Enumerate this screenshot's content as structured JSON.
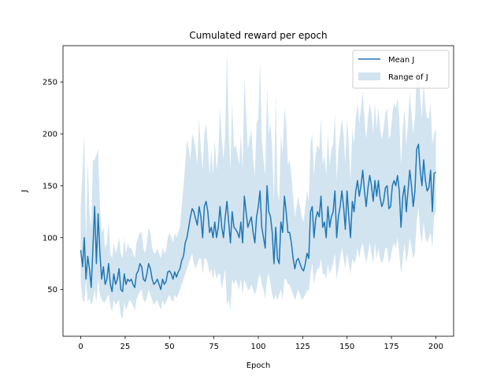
{
  "chart_data": {
    "type": "line",
    "title": "Cumulated reward per epoch",
    "xlabel": "Epoch",
    "ylabel": "J",
    "xlim": [
      -10,
      210
    ],
    "ylim": [
      5,
      285
    ],
    "xticks": [
      0,
      25,
      50,
      75,
      100,
      125,
      150,
      175,
      200
    ],
    "yticks": [
      50,
      100,
      150,
      200,
      250
    ],
    "grid": false,
    "legend_position": "top-right",
    "legend": [
      "Mean J",
      "Range of J"
    ],
    "colors": {
      "line": "#1f77b4",
      "band": "#1f77b4",
      "band_opacity": 0.2
    },
    "x_range": [
      0,
      200
    ],
    "series": [
      {
        "name": "Mean J",
        "kind": "line",
        "values": [
          88,
          72,
          100,
          60,
          82,
          70,
          52,
          90,
          130,
          75,
          123,
          85,
          60,
          72,
          55,
          60,
          75,
          55,
          48,
          65,
          55,
          60,
          70,
          50,
          48,
          65,
          55,
          60,
          58,
          60,
          55,
          52,
          65,
          68,
          75,
          72,
          60,
          58,
          65,
          75,
          70,
          60,
          55,
          57,
          60,
          55,
          50,
          60,
          55,
          58,
          67,
          68,
          65,
          60,
          67,
          62,
          67,
          70,
          78,
          82,
          95,
          100,
          110,
          120,
          128,
          125,
          118,
          112,
          130,
          120,
          100,
          130,
          135,
          125,
          105,
          110,
          100,
          115,
          100,
          110,
          130,
          110,
          100,
          120,
          135,
          115,
          95,
          125,
          110,
          108,
          105,
          100,
          115,
          95,
          140,
          125,
          110,
          115,
          120,
          105,
          95,
          120,
          130,
          145,
          110,
          100,
          90,
          150,
          125,
          120,
          105,
          75,
          110,
          80,
          75,
          115,
          105,
          140,
          125,
          105,
          105,
          95,
          80,
          70,
          78,
          80,
          75,
          70,
          68,
          75,
          85,
          80,
          125,
          130,
          100,
          118,
          125,
          120,
          140,
          110,
          115,
          100,
          130,
          110,
          120,
          125,
          145,
          100,
          120,
          130,
          145,
          130,
          108,
          145,
          120,
          100,
          135,
          125,
          145,
          155,
          140,
          150,
          165,
          145,
          130,
          148,
          160,
          150,
          135,
          155,
          140,
          155,
          138,
          130,
          135,
          148,
          150,
          128,
          130,
          150,
          155,
          150,
          160,
          145,
          110,
          140,
          150,
          125,
          145,
          165,
          150,
          130,
          145,
          185,
          190,
          165,
          150,
          175,
          155,
          145,
          148,
          165,
          125,
          162,
          163
        ]
      },
      {
        "name": "Range of J",
        "kind": "band",
        "lower": [
          58,
          40,
          38,
          60,
          38,
          42,
          35,
          40,
          50,
          38,
          60,
          45,
          40,
          38,
          38,
          42,
          45,
          35,
          28,
          40,
          35,
          38,
          40,
          25,
          22,
          38,
          30,
          35,
          40,
          38,
          35,
          30,
          40,
          45,
          48,
          50,
          40,
          38,
          42,
          50,
          45,
          40,
          35,
          38,
          40,
          35,
          30,
          40,
          35,
          38,
          42,
          45,
          40,
          38,
          45,
          42,
          45,
          50,
          55,
          60,
          65,
          70,
          75,
          80,
          85,
          75,
          70,
          75,
          80,
          80,
          65,
          80,
          80,
          75,
          65,
          70,
          60,
          70,
          60,
          65,
          65,
          50,
          60,
          70,
          35,
          40,
          30,
          60,
          55,
          60,
          55,
          50,
          60,
          45,
          60,
          55,
          50,
          50,
          55,
          50,
          45,
          50,
          60,
          65,
          55,
          50,
          40,
          60,
          65,
          55,
          45,
          40,
          45,
          40,
          45,
          50,
          40,
          60,
          60,
          55,
          55,
          50,
          45,
          40,
          45,
          50,
          45,
          40,
          42,
          45,
          50,
          48,
          65,
          75,
          55,
          65,
          70,
          70,
          80,
          65,
          65,
          60,
          75,
          65,
          70,
          75,
          85,
          60,
          70,
          80,
          90,
          80,
          70,
          85,
          75,
          65,
          80,
          75,
          80,
          90,
          80,
          90,
          95,
          85,
          75,
          85,
          95,
          85,
          75,
          95,
          80,
          90,
          80,
          75,
          80,
          90,
          90,
          75,
          80,
          90,
          95,
          90,
          100,
          85,
          65,
          80,
          95,
          75,
          85,
          100,
          90,
          80,
          85,
          115,
          130,
          105,
          95,
          115,
          100,
          95,
          100,
          105,
          90,
          120,
          125
        ],
        "upper": [
          130,
          165,
          200,
          95,
          175,
          125,
          110,
          175,
          175,
          180,
          185,
          130,
          105,
          110,
          90,
          95,
          115,
          85,
          80,
          95,
          85,
          90,
          100,
          85,
          80,
          100,
          85,
          95,
          90,
          90,
          85,
          80,
          95,
          100,
          105,
          105,
          90,
          85,
          95,
          110,
          105,
          90,
          85,
          85,
          90,
          85,
          80,
          90,
          85,
          88,
          100,
          105,
          100,
          95,
          105,
          100,
          105,
          110,
          130,
          150,
          170,
          195,
          185,
          175,
          200,
          195,
          185,
          170,
          215,
          185,
          165,
          200,
          210,
          190,
          160,
          185,
          160,
          195,
          165,
          180,
          225,
          195,
          175,
          200,
          280,
          205,
          165,
          230,
          185,
          190,
          180,
          170,
          200,
          165,
          255,
          220,
          185,
          195,
          205,
          175,
          160,
          210,
          215,
          270,
          195,
          175,
          160,
          245,
          200,
          210,
          185,
          135,
          240,
          145,
          135,
          200,
          180,
          225,
          210,
          170,
          175,
          160,
          140,
          120,
          130,
          140,
          130,
          120,
          115,
          130,
          145,
          135,
          190,
          200,
          160,
          180,
          190,
          185,
          215,
          170,
          180,
          160,
          200,
          170,
          185,
          190,
          220,
          155,
          185,
          200,
          215,
          200,
          170,
          215,
          190,
          155,
          205,
          190,
          215,
          230,
          210,
          225,
          240,
          215,
          195,
          215,
          230,
          220,
          200,
          230,
          205,
          225,
          205,
          195,
          205,
          220,
          225,
          195,
          200,
          220,
          230,
          225,
          235,
          215,
          170,
          205,
          225,
          190,
          210,
          240,
          220,
          200,
          215,
          255,
          265,
          235,
          215,
          250,
          225,
          215,
          215,
          230,
          190,
          200,
          205
        ]
      }
    ]
  }
}
